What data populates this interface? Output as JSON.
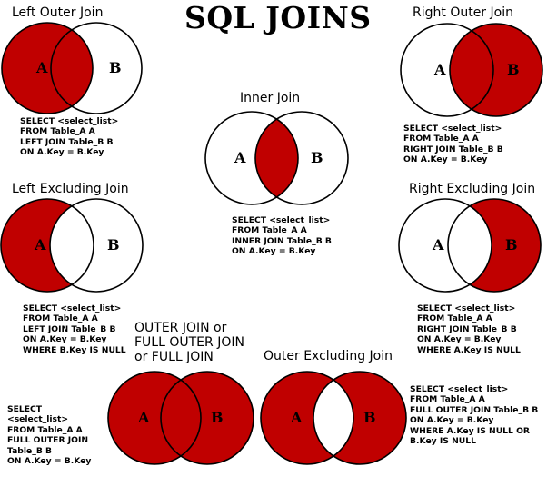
{
  "title": "SQL JOINS",
  "colors": {
    "fill": "#c00000",
    "stroke": "#000000",
    "background": "#ffffff"
  },
  "circle_labels": {
    "a": "A",
    "b": "B"
  },
  "panels": {
    "left_outer": {
      "title": "Left Outer Join",
      "sql": [
        "SELECT <select_list>",
        "FROM Table_A A",
        "LEFT JOIN Table_B B",
        "ON A.Key = B.Key"
      ]
    },
    "right_outer": {
      "title": "Right Outer Join",
      "sql": [
        "SELECT <select_list>",
        "FROM Table_A A",
        "RIGHT JOIN Table_B B",
        "ON A.Key = B.Key"
      ]
    },
    "inner": {
      "title": "Inner Join",
      "sql": [
        "SELECT <select_list>",
        "FROM Table_A A",
        "INNER JOIN Table_B B",
        "ON A.Key = B.Key"
      ]
    },
    "left_excluding": {
      "title": "Left Excluding Join",
      "sql": [
        "SELECT <select_list>",
        "FROM Table_A A",
        "LEFT JOIN Table_B B",
        "ON A.Key = B.Key",
        "WHERE B.Key IS NULL"
      ]
    },
    "right_excluding": {
      "title": "Right Excluding Join",
      "sql": [
        "SELECT <select_list>",
        "FROM Table_A A",
        "RIGHT JOIN Table_B B",
        "ON A.Key = B.Key",
        "WHERE A.Key IS NULL"
      ]
    },
    "full_outer": {
      "title_lines": [
        "OUTER JOIN or",
        "FULL OUTER JOIN",
        "or FULL JOIN"
      ],
      "sql": [
        "SELECT",
        "<select_list>",
        "FROM Table_A A",
        "FULL OUTER JOIN",
        "Table_B B",
        "ON A.Key = B.Key"
      ]
    },
    "outer_excluding": {
      "title": "Outer Excluding Join",
      "sql": [
        "SELECT <select_list>",
        "FROM Table_A A",
        "FULL OUTER JOIN Table_B B",
        "ON A.Key = B.Key",
        "WHERE A.Key IS NULL OR",
        "B.Key IS NULL"
      ]
    }
  }
}
